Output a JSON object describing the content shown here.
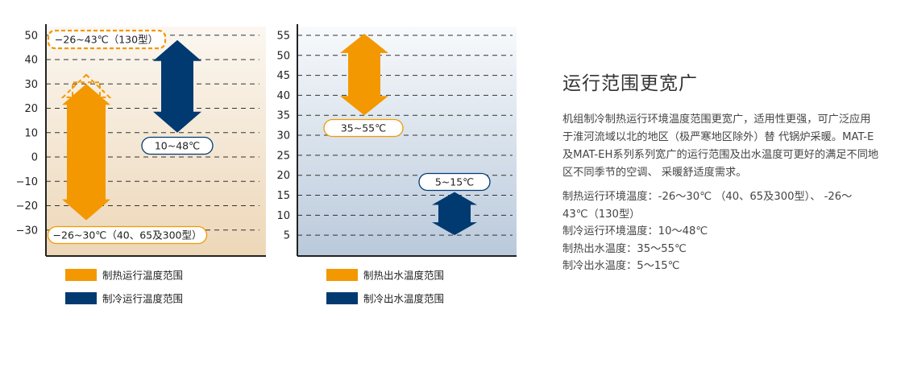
{
  "colors": {
    "heating": "#F39800",
    "cooling": "#003A70",
    "axis": "#222222"
  },
  "chart_data": [
    {
      "type": "range-bar",
      "yticks": [
        50,
        40,
        30,
        20,
        10,
        0,
        -10,
        -20,
        -30
      ],
      "ylim": [
        -34,
        55
      ],
      "grid": "dashed",
      "background": "warm-gradient",
      "series": [
        {
          "name": "制热运行温度范围",
          "color": "#F39800",
          "range": [
            -26,
            30
          ],
          "extended_range": [
            -26,
            43
          ]
        },
        {
          "name": "制冷运行温度范围",
          "color": "#003A70",
          "range": [
            10,
            48
          ]
        }
      ],
      "annotations": [
        "−26~43℃（130型）",
        "10~48℃",
        "−26~30℃（40、65及300型）"
      ]
    },
    {
      "type": "range-bar",
      "yticks": [
        55,
        50,
        45,
        40,
        35,
        30,
        25,
        20,
        15,
        10,
        5
      ],
      "ylim": [
        0,
        58
      ],
      "grid": "dashed",
      "background": "cool-gradient",
      "series": [
        {
          "name": "制热出水温度范围",
          "color": "#F39800",
          "range": [
            35,
            55
          ]
        },
        {
          "name": "制冷出水温度范围",
          "color": "#003A70",
          "range": [
            5,
            15
          ]
        }
      ],
      "annotations": [
        "35~55℃",
        "5~15℃"
      ]
    }
  ],
  "panel": {
    "title": "运行范围更宽广",
    "description": "机组制冷制热运行环境温度范围更宽广，适用性更强，可广泛应用于淮河流域以北的地区（极严寒地区除外）替 代锅炉采暖。MAT-E及MAT-EH系列系列宽广的运行范围及出水温度可更好的满足不同地区不同季节的空调、 采暖舒适度需求。",
    "specs": [
      "制热运行环境温度：-26～30℃ （40、65及300型）、 -26～43℃（130型）",
      "制冷运行环境温度：10～48℃",
      "制热出水温度：35～55℃",
      "制冷出水温度：5～15℃"
    ]
  }
}
